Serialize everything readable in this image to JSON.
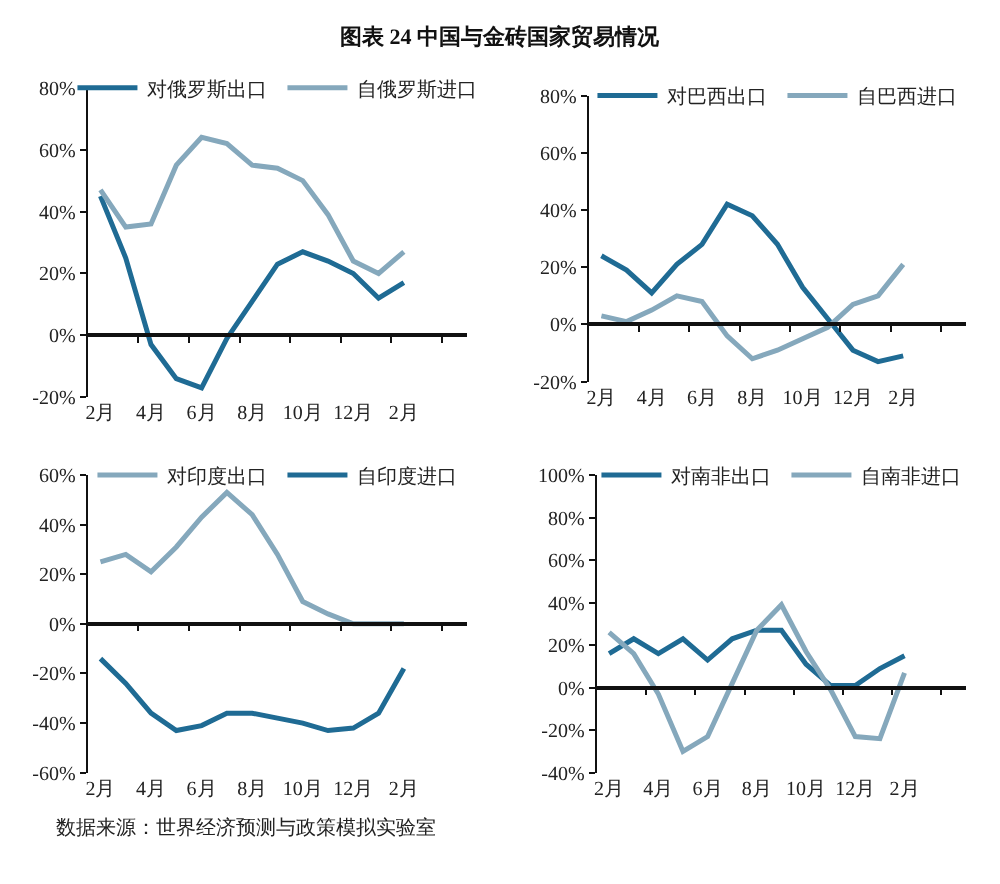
{
  "chart_data": [
    {
      "type": "line",
      "title": "图表 24 中国与金砖国家贸易情况",
      "categories": [
        "2月",
        null,
        "4月",
        null,
        "6月",
        null,
        "8月",
        null,
        "10月",
        null,
        "12月",
        null,
        "2月",
        null,
        null
      ],
      "series": [
        {
          "name": "对俄罗斯出口",
          "color": "#1f6b94",
          "values": [
            45,
            25,
            -3,
            -14,
            -17,
            -1,
            11,
            23,
            27,
            24,
            20,
            12,
            17,
            null,
            null
          ]
        },
        {
          "name": "自俄罗斯进口",
          "color": "#85a8bc",
          "values": [
            47,
            35,
            36,
            55,
            64,
            62,
            55,
            54,
            50,
            39,
            24,
            20,
            27,
            null,
            null
          ]
        }
      ],
      "ylim": [
        -20,
        80
      ],
      "yticks": [
        {
          "value": -20,
          "label": "-20%"
        },
        {
          "value": 0,
          "label": "0%"
        },
        {
          "value": 20,
          "label": "20%"
        },
        {
          "value": 40,
          "label": "40%"
        },
        {
          "value": 60,
          "label": "60%"
        },
        {
          "value": 80,
          "label": "80%"
        }
      ],
      "legend": "top"
    },
    {
      "type": "line",
      "categories": [
        "2月",
        null,
        "4月",
        null,
        "6月",
        null,
        "8月",
        null,
        "10月",
        null,
        "12月",
        null,
        "2月",
        null,
        null
      ],
      "series": [
        {
          "name": "对巴西出口",
          "color": "#1f6b94",
          "values": [
            24,
            19,
            11,
            21,
            28,
            42,
            38,
            28,
            13,
            2,
            -9,
            -13,
            -11,
            null,
            null
          ]
        },
        {
          "name": "自巴西进口",
          "color": "#85a8bc",
          "values": [
            3,
            1,
            5,
            10,
            8,
            -4,
            -12,
            -9,
            -5,
            -1,
            7,
            10,
            21,
            null,
            null
          ]
        }
      ],
      "ylim": [
        -20,
        80
      ],
      "yticks": [
        {
          "value": -20,
          "label": "-20%"
        },
        {
          "value": 0,
          "label": "0%"
        },
        {
          "value": 20,
          "label": "20%"
        },
        {
          "value": 40,
          "label": "40%"
        },
        {
          "value": 60,
          "label": "60%"
        },
        {
          "value": 80,
          "label": "80%"
        }
      ],
      "legend": "top"
    },
    {
      "type": "line",
      "categories": [
        "2月",
        null,
        "4月",
        null,
        "6月",
        null,
        "8月",
        null,
        "10月",
        null,
        "12月",
        null,
        "2月",
        null,
        null
      ],
      "series": [
        {
          "name": "对印度出口",
          "color": "#85a8bc",
          "values": [
            25,
            28,
            21,
            31,
            43,
            53,
            44,
            28,
            9,
            4,
            0,
            0,
            0,
            null,
            null
          ]
        },
        {
          "name": "自印度进口",
          "color": "#1f6b94",
          "values": [
            -14,
            -24,
            -36,
            -43,
            -41,
            -36,
            -36,
            -38,
            -40,
            -43,
            -42,
            -36,
            -18,
            null,
            null
          ]
        }
      ],
      "ylim": [
        -60,
        60
      ],
      "yticks": [
        {
          "value": -60,
          "label": "-60%"
        },
        {
          "value": -40,
          "label": "-40%"
        },
        {
          "value": -20,
          "label": "-20%"
        },
        {
          "value": 0,
          "label": "0%"
        },
        {
          "value": 20,
          "label": "20%"
        },
        {
          "value": 40,
          "label": "40%"
        },
        {
          "value": 60,
          "label": "60%"
        }
      ],
      "legend": "top"
    },
    {
      "type": "line",
      "categories": [
        "2月",
        null,
        "4月",
        null,
        "6月",
        null,
        "8月",
        null,
        "10月",
        null,
        "12月",
        null,
        "2月",
        null,
        null
      ],
      "series": [
        {
          "name": "对南非出口",
          "color": "#1f6b94",
          "values": [
            16,
            23,
            16,
            23,
            13,
            23,
            27,
            27,
            11,
            1,
            1,
            9,
            15,
            null,
            null
          ]
        },
        {
          "name": "自南非进口",
          "color": "#85a8bc",
          "values": [
            26,
            16,
            -3,
            -30,
            -23,
            2,
            27,
            39,
            17,
            -1,
            -23,
            -24,
            7,
            null,
            null
          ]
        }
      ],
      "ylim": [
        -40,
        100
      ],
      "yticks": [
        {
          "value": -40,
          "label": "-40%"
        },
        {
          "value": -20,
          "label": "-20%"
        },
        {
          "value": 0,
          "label": "0%"
        },
        {
          "value": 20,
          "label": "20%"
        },
        {
          "value": 40,
          "label": "40%"
        },
        {
          "value": 60,
          "label": "60%"
        },
        {
          "value": 80,
          "label": "80%"
        },
        {
          "value": 100,
          "label": "100%"
        }
      ],
      "legend": "top",
      "annotations": [
        "数据来源：世界经济预测与政策模拟实验室"
      ]
    }
  ]
}
